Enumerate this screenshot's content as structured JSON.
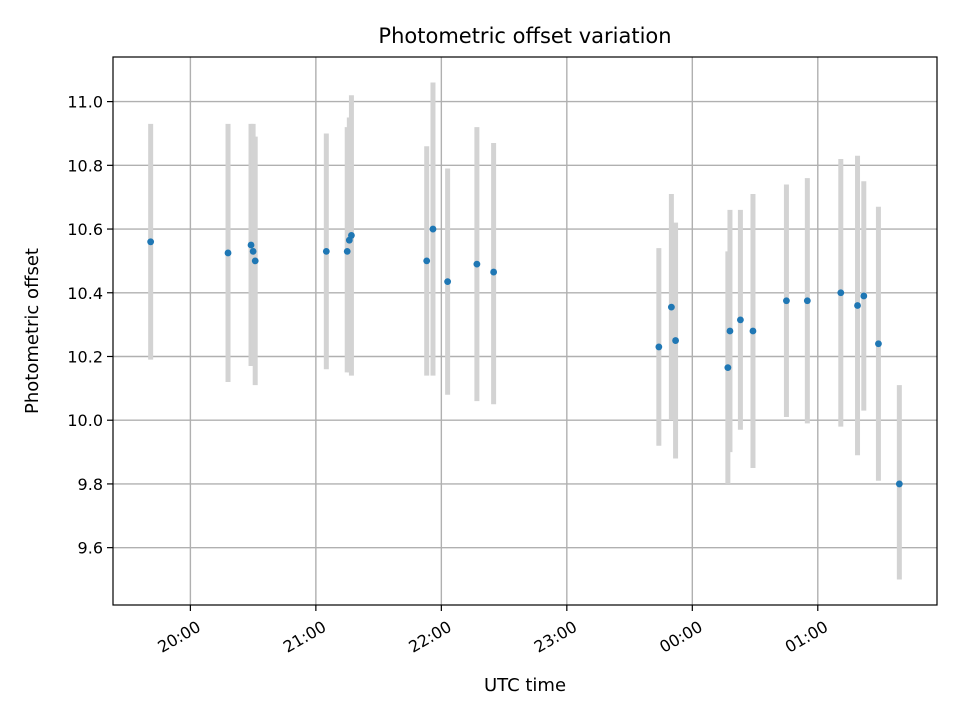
{
  "chart_data": {
    "type": "scatter",
    "title": "Photometric offset variation",
    "xlabel": "UTC time",
    "ylabel": "Photometric offset",
    "xlim": [
      "19:23",
      "01:57"
    ],
    "ylim": [
      9.42,
      11.14
    ],
    "xticks": [
      "20:00",
      "21:00",
      "22:00",
      "23:00",
      "00:00",
      "01:00"
    ],
    "yticks": [
      9.6,
      9.8,
      10.0,
      10.2,
      10.4,
      10.6,
      10.8,
      11.0
    ],
    "ytick_labels": [
      "9.6",
      "9.8",
      "10.0",
      "10.2",
      "10.4",
      "10.6",
      "10.8",
      "11.0"
    ],
    "grid": true,
    "colors": {
      "point": "#1f77b4",
      "error_bar": "#d3d3d3",
      "grid": "#b0b0b0"
    },
    "points": [
      {
        "x": "19:41",
        "y": 10.56,
        "low": 10.19,
        "high": 10.93
      },
      {
        "x": "20:18",
        "y": 10.525,
        "low": 10.12,
        "high": 10.93
      },
      {
        "x": "20:29",
        "y": 10.55,
        "low": 10.17,
        "high": 10.93
      },
      {
        "x": "20:30",
        "y": 10.53,
        "low": 10.17,
        "high": 10.93
      },
      {
        "x": "20:31",
        "y": 10.5,
        "low": 10.11,
        "high": 10.89
      },
      {
        "x": "21:05",
        "y": 10.53,
        "low": 10.16,
        "high": 10.9
      },
      {
        "x": "21:15",
        "y": 10.53,
        "low": 10.15,
        "high": 10.92
      },
      {
        "x": "21:16",
        "y": 10.565,
        "low": 10.15,
        "high": 10.95
      },
      {
        "x": "21:17",
        "y": 10.58,
        "low": 10.14,
        "high": 11.02
      },
      {
        "x": "21:53",
        "y": 10.5,
        "low": 10.14,
        "high": 10.86
      },
      {
        "x": "21:56",
        "y": 10.6,
        "low": 10.14,
        "high": 11.06
      },
      {
        "x": "22:03",
        "y": 10.435,
        "low": 10.08,
        "high": 10.79
      },
      {
        "x": "22:17",
        "y": 10.49,
        "low": 10.06,
        "high": 10.92
      },
      {
        "x": "22:25",
        "y": 10.465,
        "low": 10.05,
        "high": 10.87
      },
      {
        "x": "23:44",
        "y": 10.23,
        "low": 9.92,
        "high": 10.54
      },
      {
        "x": "23:50",
        "y": 10.355,
        "low": 10.0,
        "high": 10.71
      },
      {
        "x": "23:52",
        "y": 10.25,
        "low": 9.88,
        "high": 10.62
      },
      {
        "x": "00:17",
        "y": 10.165,
        "low": 9.8,
        "high": 10.53
      },
      {
        "x": "00:18",
        "y": 10.28,
        "low": 9.9,
        "high": 10.66
      },
      {
        "x": "00:23",
        "y": 10.315,
        "low": 9.97,
        "high": 10.66
      },
      {
        "x": "00:29",
        "y": 10.28,
        "low": 9.85,
        "high": 10.71
      },
      {
        "x": "00:45",
        "y": 10.375,
        "low": 10.01,
        "high": 10.74
      },
      {
        "x": "00:55",
        "y": 10.375,
        "low": 9.99,
        "high": 10.76
      },
      {
        "x": "01:11",
        "y": 10.4,
        "low": 9.98,
        "high": 10.82
      },
      {
        "x": "01:19",
        "y": 10.36,
        "low": 9.89,
        "high": 10.83
      },
      {
        "x": "01:22",
        "y": 10.39,
        "low": 10.03,
        "high": 10.75
      },
      {
        "x": "01:29",
        "y": 10.24,
        "low": 9.81,
        "high": 10.67
      },
      {
        "x": "01:39",
        "y": 9.8,
        "low": 9.5,
        "high": 10.11
      }
    ]
  }
}
